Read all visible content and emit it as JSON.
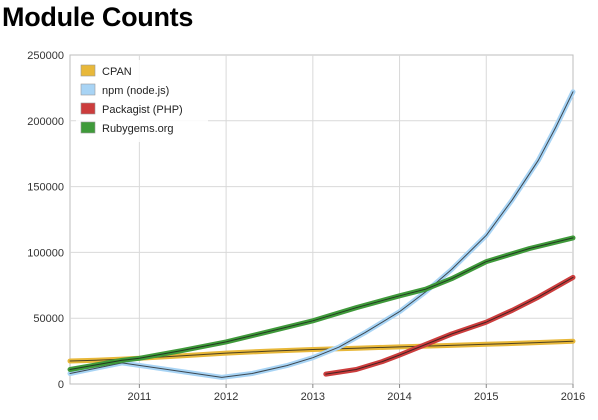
{
  "chart_data": {
    "type": "line",
    "title": "Module Counts",
    "xlabel": "",
    "ylabel": "",
    "xlim": [
      2010.2,
      2016.0
    ],
    "ylim": [
      0,
      250000
    ],
    "x_ticks": [
      "2011",
      "2012",
      "2013",
      "2014",
      "2015",
      "2016"
    ],
    "y_ticks": [
      "0",
      "50000",
      "100000",
      "150000",
      "200000",
      "250000"
    ],
    "grid": true,
    "legend_position": "top-left",
    "series": [
      {
        "name": "CPAN",
        "color": "#e8b83a",
        "points": [
          [
            2010.2,
            17500
          ],
          [
            2010.5,
            18000
          ],
          [
            2011.0,
            19500
          ],
          [
            2011.5,
            21500
          ],
          [
            2012.0,
            23500
          ],
          [
            2012.5,
            25000
          ],
          [
            2013.0,
            26200
          ],
          [
            2013.5,
            27200
          ],
          [
            2014.0,
            28200
          ],
          [
            2014.5,
            29200
          ],
          [
            2015.0,
            30200
          ],
          [
            2015.5,
            31200
          ],
          [
            2016.0,
            32500
          ]
        ]
      },
      {
        "name": "npm (node.js)",
        "color": "#a8d4f5",
        "points": [
          [
            2010.2,
            8000
          ],
          [
            2010.5,
            12000
          ],
          [
            2010.8,
            16000
          ],
          [
            2011.95,
            5000
          ],
          [
            2012.3,
            8000
          ],
          [
            2012.7,
            14000
          ],
          [
            2013.0,
            20000
          ],
          [
            2013.3,
            28000
          ],
          [
            2013.6,
            39000
          ],
          [
            2014.0,
            55000
          ],
          [
            2014.3,
            70000
          ],
          [
            2014.6,
            87000
          ],
          [
            2015.0,
            113000
          ],
          [
            2015.3,
            140000
          ],
          [
            2015.6,
            170000
          ],
          [
            2015.8,
            195000
          ],
          [
            2016.0,
            222000
          ]
        ]
      },
      {
        "name": "Packagist (PHP)",
        "color": "#cc3d3d",
        "points": [
          [
            2013.15,
            7500
          ],
          [
            2013.5,
            11000
          ],
          [
            2013.8,
            17000
          ],
          [
            2014.0,
            22000
          ],
          [
            2014.3,
            30000
          ],
          [
            2014.6,
            38000
          ],
          [
            2015.0,
            47000
          ],
          [
            2015.3,
            56000
          ],
          [
            2015.6,
            66000
          ],
          [
            2016.0,
            81000
          ]
        ]
      },
      {
        "name": "Rubygems.org",
        "color": "#3f9a3a",
        "points": [
          [
            2010.2,
            11000
          ],
          [
            2010.5,
            14500
          ],
          [
            2010.8,
            18000
          ],
          [
            2011.0,
            19500
          ],
          [
            2011.5,
            25500
          ],
          [
            2012.0,
            32000
          ],
          [
            2012.5,
            40000
          ],
          [
            2013.0,
            48000
          ],
          [
            2013.5,
            58000
          ],
          [
            2014.0,
            67000
          ],
          [
            2014.3,
            72000
          ],
          [
            2014.6,
            80000
          ],
          [
            2015.0,
            93000
          ],
          [
            2015.5,
            103000
          ],
          [
            2016.0,
            111000
          ]
        ]
      }
    ]
  }
}
